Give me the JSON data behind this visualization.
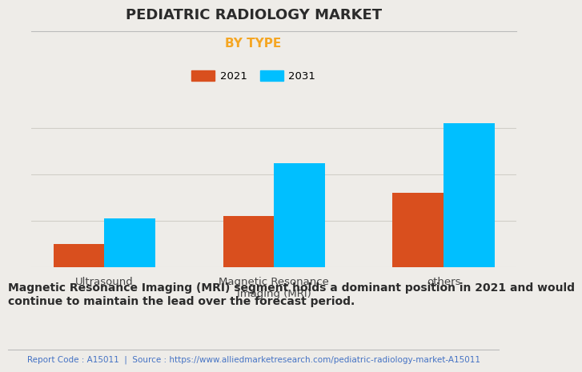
{
  "title": "PEDIATRIC RADIOLOGY MARKET",
  "subtitle": "BY TYPE",
  "categories": [
    "Ultrasound",
    "Magnetic Resonance\nImaging (MRI)",
    "others"
  ],
  "series": [
    {
      "label": "2021",
      "values": [
        1.0,
        2.2,
        3.2
      ],
      "color": "#D94F1E"
    },
    {
      "label": "2031",
      "values": [
        2.1,
        4.5,
        6.2
      ],
      "color": "#00BFFF"
    }
  ],
  "bar_width": 0.3,
  "background_color": "#EEECE8",
  "plot_bg_color": "#EEECE8",
  "title_fontsize": 13,
  "subtitle_fontsize": 11,
  "subtitle_color": "#F5A623",
  "legend_fontsize": 9.5,
  "tick_fontsize": 9.5,
  "footer_text": "Magnetic Resonance Imaging (MRI) segment holds a dominant position in 2021 and would\ncontinue to maintain the lead over the forecast period.",
  "source_text": "Report Code : A15011  |  Source : https://www.alliedmarketresearch.com/pediatric-radiology-market-A15011",
  "footer_fontsize": 10,
  "source_fontsize": 7.5,
  "source_color": "#4472C4",
  "grid_color": "#D0CEC8",
  "ylim": [
    0,
    7.5
  ]
}
